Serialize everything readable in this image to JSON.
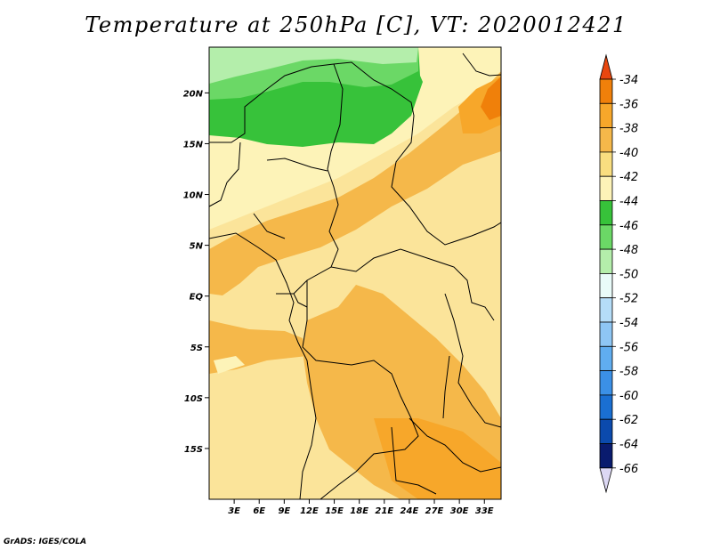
{
  "title": "Temperature at 250hPa [C], VT: 2020012421",
  "credit": "GrADS: IGES/COLA",
  "map": {
    "lat_labels": [
      "20N",
      "15N",
      "10N",
      "5N",
      "EQ",
      "5S",
      "10S",
      "15S"
    ],
    "lon_labels": [
      "3E",
      "6E",
      "9E",
      "12E",
      "15E",
      "18E",
      "21E",
      "24E",
      "27E",
      "30E",
      "33E"
    ],
    "lat_values": [
      20,
      15,
      10,
      5,
      0,
      -5,
      -10,
      -15
    ],
    "lon_values": [
      3,
      6,
      9,
      12,
      15,
      18,
      21,
      24,
      27,
      30,
      33
    ],
    "lat_range": [
      -20,
      24.5
    ],
    "lon_range": [
      0,
      35
    ]
  },
  "colorbar": {
    "labels": [
      "-34",
      "-36",
      "-38",
      "-40",
      "-42",
      "-44",
      "-46",
      "-48",
      "-50",
      "-52",
      "-54",
      "-56",
      "-58",
      "-60",
      "-62",
      "-64",
      "-66"
    ],
    "colors": [
      "#e8470f",
      "#f0800a",
      "#f7a72a",
      "#f5b84a",
      "#f9de80",
      "#fdf3b8",
      "#37c23a",
      "#6bd866",
      "#b4eeab",
      "#e9fbf9",
      "#b5ddf8",
      "#8ec6f4",
      "#60adf0",
      "#3b90e6",
      "#1a6fd2",
      "#0b4aad",
      "#091b6e",
      "#dcd8f4"
    ]
  }
}
